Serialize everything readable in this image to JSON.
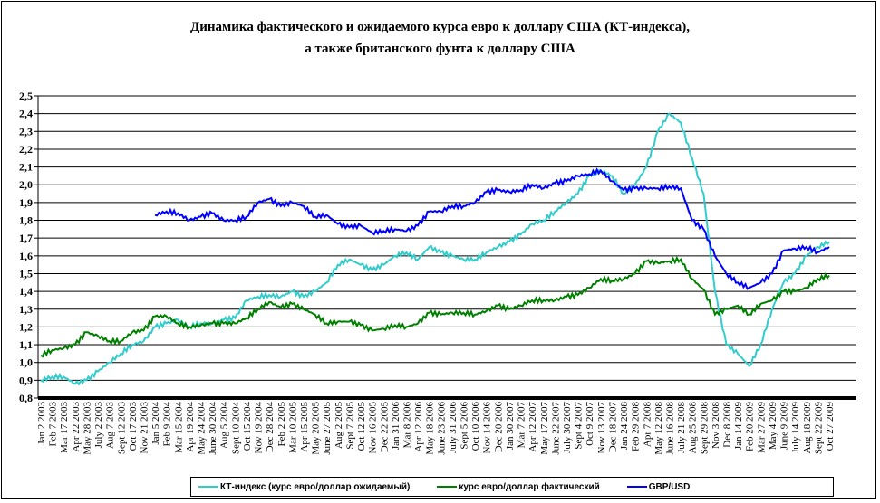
{
  "chart_data": {
    "type": "line",
    "title": [
      "Динамика фактического и ожидаемого курса евро к доллару США (КТ-индекса),",
      "а также британского фунта к доллару США"
    ],
    "xlabel": "",
    "ylabel": "",
    "ylim": [
      0.8,
      2.5
    ],
    "yticks": [
      "0,8",
      "0,9",
      "1,0",
      "1,1",
      "1,2",
      "1,3",
      "1,4",
      "1,5",
      "1,6",
      "1,7",
      "1,8",
      "1,9",
      "2,0",
      "2,1",
      "2,2",
      "2,3",
      "2,4",
      "2,5"
    ],
    "grid": true,
    "legend_position": "bottom",
    "categories": [
      "Jan 2 2003",
      "Feb 7 2003",
      "Mar 17 2003",
      "Apr 22 2003",
      "May 28 2003",
      "July 2 2003",
      "Aug 7 2003",
      "Sept 12 2003",
      "Oct 17 2003",
      "Nov 21 2003",
      "Jan 5 2004",
      "Feb 9 2004",
      "Mar 15 2004",
      "Apr 19 2004",
      "May 24 2004",
      "June 30 2004",
      "Aug 5 2004",
      "Sept 10 2004",
      "Oct 15 2004",
      "Nov 19 2004",
      "Dec 28 2004",
      "Feb 2 2005",
      "Mar 10 2005",
      "Apr 15 2005",
      "May 20 2005",
      "June 27 2005",
      "Aug 2 2005",
      "Sept 7 2005",
      "Oct 12 2005",
      "Nov 16 2005",
      "Dec 22 2005",
      "Jan 31 2006",
      "Mar 8 2006",
      "Apr 12 2006",
      "May 18 2006",
      "June 23 2006",
      "July 31 2006",
      "Sept 5 2006",
      "Oct 10 2006",
      "Nov 14 2006",
      "Dec 20 2006",
      "Jan 30 2007",
      "Mar 7 2007",
      "Apr 12 2007",
      "May 17 2007",
      "June 22 2007",
      "July 30 2007",
      "Sept 4 2007",
      "Oct 9 2007",
      "Nov 13 2007",
      "Dec 18 2007",
      "Jan 24 2008",
      "Feb 29 2008",
      "Apr 7 2008",
      "May 12 2008",
      "June 16 2008",
      "July 21 2008",
      "Aug 25 2008",
      "Sept 29 2008",
      "Nov 3 2008",
      "Dec 8 2008",
      "Jan 14 2009",
      "Feb 20 2009",
      "Mar 27 2009",
      "May 4 2009",
      "June 9 2009",
      "July 14 2009",
      "Aug 18 2009",
      "Sept 22 2009",
      "Oct 27 2009"
    ],
    "series": [
      {
        "name": "КТ-индекс (курс евро/доллар ожидаемый)",
        "color": "#33cccc",
        "values": [
          0.9,
          0.92,
          0.92,
          0.88,
          0.9,
          0.95,
          1.0,
          1.05,
          1.1,
          1.12,
          1.2,
          1.22,
          1.24,
          1.2,
          1.22,
          1.22,
          1.24,
          1.25,
          1.35,
          1.37,
          1.38,
          1.37,
          1.4,
          1.37,
          1.4,
          1.45,
          1.55,
          1.58,
          1.55,
          1.52,
          1.55,
          1.6,
          1.62,
          1.58,
          1.65,
          1.62,
          1.6,
          1.58,
          1.58,
          1.62,
          1.65,
          1.68,
          1.72,
          1.78,
          1.8,
          1.85,
          1.9,
          1.95,
          2.05,
          2.08,
          2.05,
          1.95,
          2.0,
          2.1,
          2.3,
          2.4,
          2.35,
          2.15,
          1.95,
          1.4,
          1.1,
          1.05,
          0.98,
          1.1,
          1.3,
          1.45,
          1.5,
          1.6,
          1.65,
          1.68
        ]
      },
      {
        "name": "курс евро/доллар фактический",
        "color": "#008000",
        "values": [
          1.04,
          1.07,
          1.08,
          1.1,
          1.17,
          1.15,
          1.12,
          1.12,
          1.17,
          1.18,
          1.26,
          1.26,
          1.22,
          1.2,
          1.21,
          1.22,
          1.22,
          1.22,
          1.25,
          1.3,
          1.34,
          1.31,
          1.33,
          1.3,
          1.27,
          1.22,
          1.23,
          1.23,
          1.21,
          1.18,
          1.19,
          1.21,
          1.2,
          1.22,
          1.28,
          1.27,
          1.28,
          1.28,
          1.27,
          1.29,
          1.32,
          1.3,
          1.32,
          1.35,
          1.35,
          1.35,
          1.37,
          1.38,
          1.42,
          1.47,
          1.46,
          1.47,
          1.5,
          1.57,
          1.56,
          1.57,
          1.58,
          1.47,
          1.41,
          1.27,
          1.3,
          1.32,
          1.27,
          1.33,
          1.35,
          1.4,
          1.4,
          1.42,
          1.47,
          1.49
        ]
      },
      {
        "name": "GBP/USD",
        "color": "#0000ff",
        "values": [
          null,
          null,
          null,
          null,
          null,
          null,
          null,
          null,
          null,
          null,
          1.83,
          1.85,
          1.84,
          1.8,
          1.82,
          1.84,
          1.8,
          1.8,
          1.82,
          1.9,
          1.92,
          1.88,
          1.9,
          1.88,
          1.82,
          1.83,
          1.78,
          1.76,
          1.77,
          1.73,
          1.74,
          1.75,
          1.74,
          1.77,
          1.85,
          1.85,
          1.88,
          1.88,
          1.9,
          1.96,
          1.97,
          1.96,
          1.97,
          2.0,
          1.98,
          2.01,
          2.02,
          2.05,
          2.06,
          2.08,
          2.02,
          1.97,
          1.98,
          1.98,
          1.98,
          1.99,
          1.98,
          1.8,
          1.75,
          1.6,
          1.5,
          1.45,
          1.42,
          1.45,
          1.5,
          1.63,
          1.64,
          1.65,
          1.62,
          1.65
        ]
      }
    ]
  }
}
